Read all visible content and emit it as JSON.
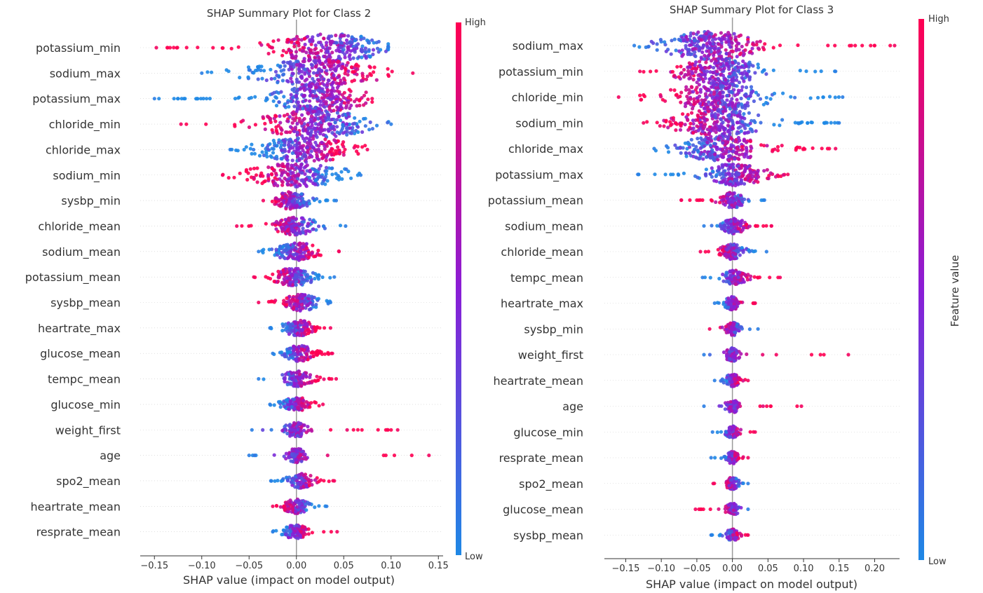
{
  "colorbar": {
    "high_label": "High",
    "low_label": "Low",
    "axis_label": "Feature value",
    "color_high": "#ff0052",
    "color_mid": "#8a1dd6",
    "color_low": "#1e88e5"
  },
  "chart_data": [
    {
      "type": "scatter",
      "title": "SHAP Summary Plot for Class 2",
      "xlabel": "SHAP value (impact on model output)",
      "xlim": [
        -0.165,
        0.155
      ],
      "xticks": [
        -0.15,
        -0.1,
        -0.05,
        0.0,
        0.05,
        0.1,
        0.15
      ],
      "xtick_labels": [
        "−0.15",
        "−0.10",
        "−0.05",
        "0.00",
        "0.05",
        "0.10",
        "0.15"
      ],
      "features": [
        {
          "name": "potassium_min",
          "min": -0.148,
          "max": 0.097,
          "center": 0.035,
          "width": 0.05,
          "density": 1.0,
          "trend": -1
        },
        {
          "name": "sodium_max",
          "min": -0.1,
          "max": 0.123,
          "center": 0.02,
          "width": 0.055,
          "density": 1.0,
          "trend": 1
        },
        {
          "name": "potassium_max",
          "min": -0.15,
          "max": 0.08,
          "center": 0.025,
          "width": 0.04,
          "density": 0.95,
          "trend": 1
        },
        {
          "name": "chloride_min",
          "min": -0.122,
          "max": 0.1,
          "center": 0.02,
          "width": 0.05,
          "density": 0.95,
          "trend": -1
        },
        {
          "name": "chloride_max",
          "min": -0.07,
          "max": 0.075,
          "center": 0.01,
          "width": 0.045,
          "density": 0.85,
          "trend": 1
        },
        {
          "name": "sodium_min",
          "min": -0.078,
          "max": 0.068,
          "center": 0.0,
          "width": 0.045,
          "density": 0.8,
          "trend": -1
        },
        {
          "name": "sysbp_min",
          "min": -0.035,
          "max": 0.042,
          "center": -0.005,
          "width": 0.016,
          "density": 0.55,
          "trend": -1
        },
        {
          "name": "chloride_mean",
          "min": -0.063,
          "max": 0.052,
          "center": 0.0,
          "width": 0.02,
          "density": 0.55,
          "trend": -1
        },
        {
          "name": "sodium_mean",
          "min": -0.04,
          "max": 0.045,
          "center": 0.0,
          "width": 0.02,
          "density": 0.55,
          "trend": 1
        },
        {
          "name": "potassium_mean",
          "min": -0.045,
          "max": 0.04,
          "center": -0.003,
          "width": 0.018,
          "density": 0.55,
          "trend": -1
        },
        {
          "name": "sysbp_mean",
          "min": -0.04,
          "max": 0.036,
          "center": 0.005,
          "width": 0.016,
          "density": 0.5,
          "trend": -1
        },
        {
          "name": "heartrate_max",
          "min": -0.028,
          "max": 0.036,
          "center": 0.002,
          "width": 0.014,
          "density": 0.45,
          "trend": 1
        },
        {
          "name": "glucose_mean",
          "min": -0.025,
          "max": 0.038,
          "center": 0.003,
          "width": 0.014,
          "density": 0.45,
          "trend": 1
        },
        {
          "name": "tempc_mean",
          "min": -0.04,
          "max": 0.042,
          "center": 0.0,
          "width": 0.014,
          "density": 0.45,
          "trend": 1
        },
        {
          "name": "glucose_min",
          "min": -0.028,
          "max": 0.028,
          "center": 0.0,
          "width": 0.013,
          "density": 0.4,
          "trend": 1
        },
        {
          "name": "weight_first",
          "min": -0.047,
          "max": 0.107,
          "center": 0.0,
          "width": 0.012,
          "density": 0.4,
          "trend": 1
        },
        {
          "name": "age",
          "min": -0.05,
          "max": 0.14,
          "center": 0.0,
          "width": 0.01,
          "density": 0.38,
          "trend": 1
        },
        {
          "name": "spo2_mean",
          "min": -0.027,
          "max": 0.04,
          "center": 0.005,
          "width": 0.013,
          "density": 0.4,
          "trend": 1
        },
        {
          "name": "heartrate_mean",
          "min": -0.025,
          "max": 0.032,
          "center": 0.0,
          "width": 0.012,
          "density": 0.38,
          "trend": -1
        },
        {
          "name": "resprate_mean",
          "min": -0.025,
          "max": 0.043,
          "center": 0.0,
          "width": 0.012,
          "density": 0.38,
          "trend": 1
        }
      ]
    },
    {
      "type": "scatter",
      "title": "SHAP Summary Plot for Class 3",
      "xlabel": "SHAP value (impact on model output)",
      "xlim": [
        -0.18,
        0.235
      ],
      "xticks": [
        -0.15,
        -0.1,
        -0.05,
        0.0,
        0.05,
        0.1,
        0.15,
        0.2
      ],
      "xtick_labels": [
        "−0.15",
        "−0.10",
        "−0.05",
        "0.00",
        "0.05",
        "0.10",
        "0.15",
        "0.20"
      ],
      "features": [
        {
          "name": "sodium_max",
          "min": -0.138,
          "max": 0.228,
          "center": -0.03,
          "width": 0.06,
          "density": 1.0,
          "trend": 1
        },
        {
          "name": "potassium_min",
          "min": -0.13,
          "max": 0.145,
          "center": -0.02,
          "width": 0.05,
          "density": 0.95,
          "trend": -1
        },
        {
          "name": "chloride_min",
          "min": -0.16,
          "max": 0.155,
          "center": -0.02,
          "width": 0.06,
          "density": 1.0,
          "trend": -1
        },
        {
          "name": "sodium_min",
          "min": -0.125,
          "max": 0.15,
          "center": -0.02,
          "width": 0.055,
          "density": 0.95,
          "trend": -1
        },
        {
          "name": "chloride_max",
          "min": -0.11,
          "max": 0.145,
          "center": -0.015,
          "width": 0.05,
          "density": 0.9,
          "trend": 1
        },
        {
          "name": "potassium_max",
          "min": -0.133,
          "max": 0.078,
          "center": 0.005,
          "width": 0.035,
          "density": 0.75,
          "trend": 1
        },
        {
          "name": "potassium_mean",
          "min": -0.072,
          "max": 0.045,
          "center": 0.0,
          "width": 0.015,
          "density": 0.45,
          "trend": -1
        },
        {
          "name": "sodium_mean",
          "min": -0.04,
          "max": 0.055,
          "center": 0.002,
          "width": 0.014,
          "density": 0.45,
          "trend": 1
        },
        {
          "name": "chloride_mean",
          "min": -0.045,
          "max": 0.048,
          "center": 0.0,
          "width": 0.014,
          "density": 0.45,
          "trend": -1
        },
        {
          "name": "tempc_mean",
          "min": -0.042,
          "max": 0.067,
          "center": 0.003,
          "width": 0.014,
          "density": 0.4,
          "trend": 1
        },
        {
          "name": "heartrate_max",
          "min": -0.025,
          "max": 0.032,
          "center": 0.0,
          "width": 0.01,
          "density": 0.35,
          "trend": 1
        },
        {
          "name": "sysbp_min",
          "min": -0.032,
          "max": 0.036,
          "center": 0.0,
          "width": 0.01,
          "density": 0.35,
          "trend": -1
        },
        {
          "name": "weight_first",
          "min": -0.04,
          "max": 0.163,
          "center": 0.0,
          "width": 0.009,
          "density": 0.35,
          "trend": 1
        },
        {
          "name": "heartrate_mean",
          "min": -0.025,
          "max": 0.022,
          "center": 0.0,
          "width": 0.009,
          "density": 0.32,
          "trend": 1
        },
        {
          "name": "age",
          "min": -0.04,
          "max": 0.097,
          "center": 0.0,
          "width": 0.009,
          "density": 0.32,
          "trend": 1
        },
        {
          "name": "glucose_min",
          "min": -0.028,
          "max": 0.032,
          "center": 0.0,
          "width": 0.009,
          "density": 0.32,
          "trend": 1
        },
        {
          "name": "resprate_mean",
          "min": -0.03,
          "max": 0.022,
          "center": 0.0,
          "width": 0.008,
          "density": 0.3,
          "trend": 1
        },
        {
          "name": "spo2_mean",
          "min": -0.027,
          "max": 0.022,
          "center": 0.0,
          "width": 0.008,
          "density": 0.3,
          "trend": -1
        },
        {
          "name": "glucose_mean",
          "min": -0.052,
          "max": 0.022,
          "center": 0.0,
          "width": 0.008,
          "density": 0.3,
          "trend": -1
        },
        {
          "name": "sysbp_mean",
          "min": -0.03,
          "max": 0.022,
          "center": 0.0,
          "width": 0.008,
          "density": 0.28,
          "trend": 1
        }
      ]
    }
  ]
}
